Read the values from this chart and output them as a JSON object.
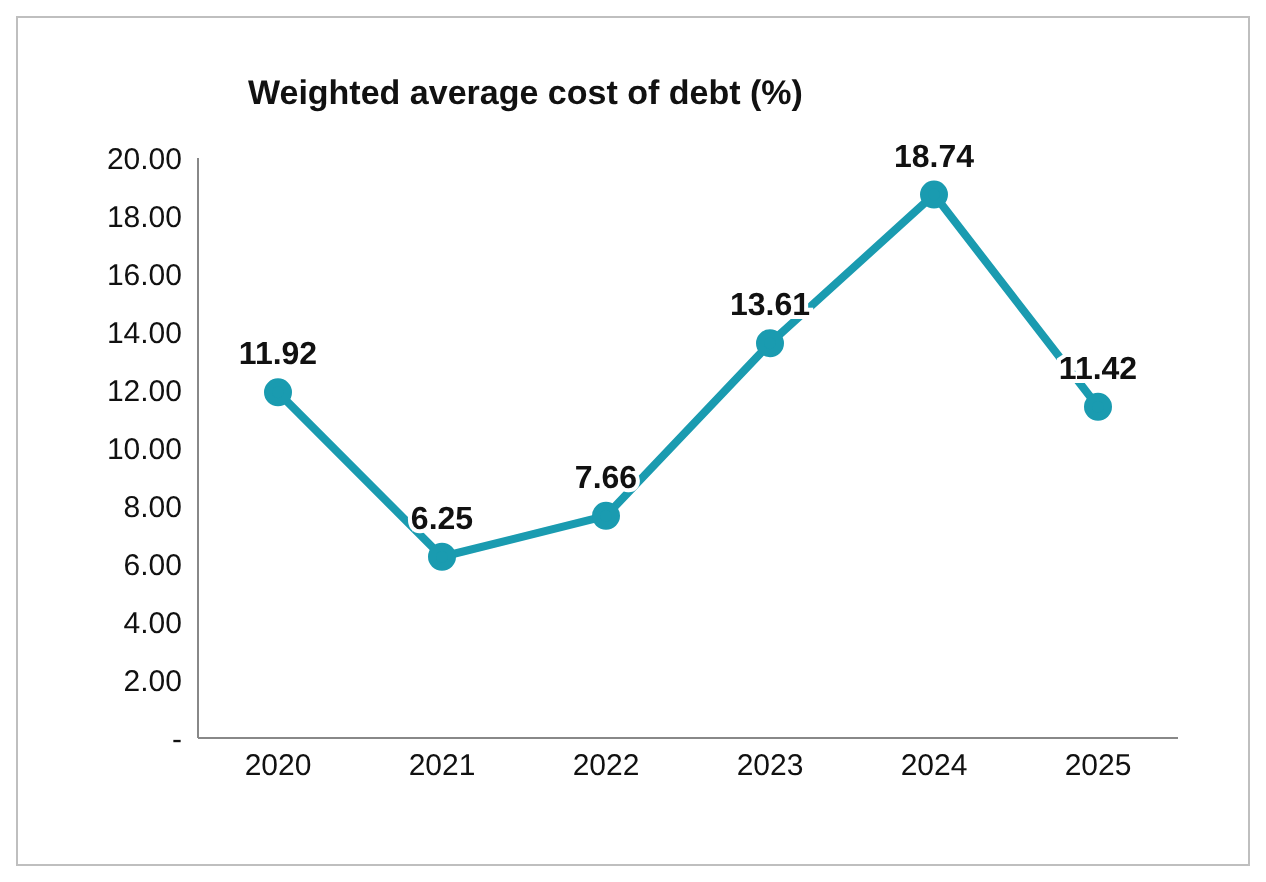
{
  "chart_data": {
    "type": "line",
    "title": "Weighted average cost of debt (%)",
    "categories": [
      "2020",
      "2021",
      "2022",
      "2023",
      "2024",
      "2025"
    ],
    "series": [
      {
        "color": "#1a9bb0",
        "values": [
          11.92,
          6.25,
          7.66,
          13.61,
          18.74,
          11.42
        ]
      }
    ],
    "ylim": [
      0,
      20
    ],
    "yticks": [
      {
        "value": 0,
        "label": "-"
      },
      {
        "value": 2,
        "label": "2.00"
      },
      {
        "value": 4,
        "label": "4.00"
      },
      {
        "value": 6,
        "label": "6.00"
      },
      {
        "value": 8,
        "label": "8.00"
      },
      {
        "value": 10,
        "label": "10.00"
      },
      {
        "value": 12,
        "label": "12.00"
      },
      {
        "value": 14,
        "label": "14.00"
      },
      {
        "value": 16,
        "label": "16.00"
      },
      {
        "value": 18,
        "label": "18.00"
      },
      {
        "value": 20,
        "label": "20.00"
      }
    ],
    "grid": false,
    "legend": false,
    "marker": "circle",
    "line_style": "solid",
    "data_labels": true
  }
}
